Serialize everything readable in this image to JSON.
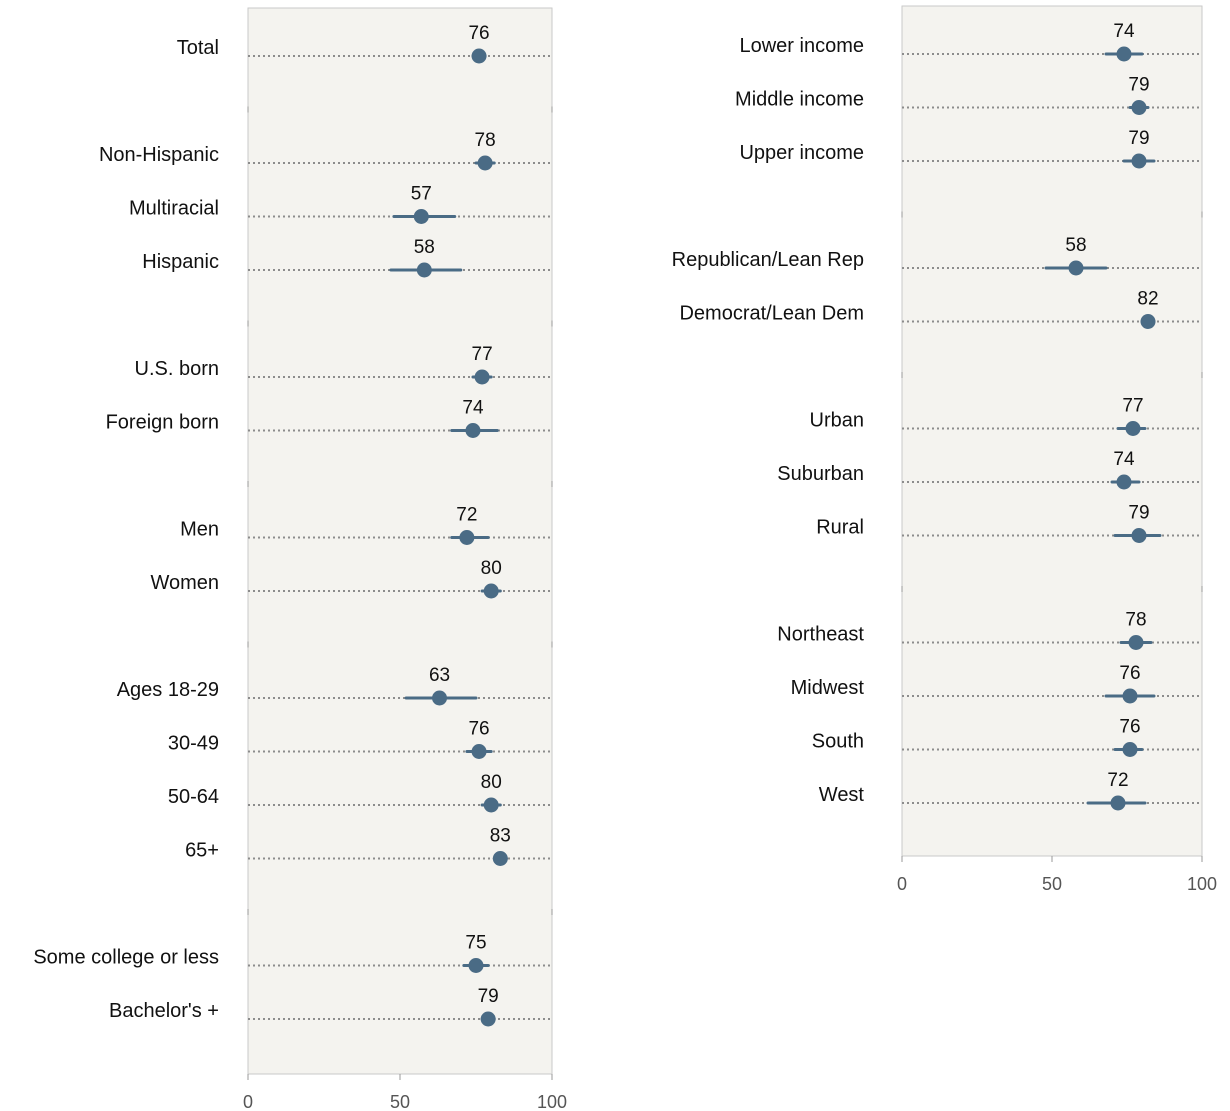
{
  "colors": {
    "panel_bg": "#f4f3ef",
    "panel_border": "#c9c9c9",
    "dot": "#4a6b85",
    "ci_line": "#4a6b85",
    "dotted_line": "#8c8c8c"
  },
  "chart_data": [
    {
      "type": "scatter",
      "title": "",
      "xlabel": "",
      "ylabel": "",
      "xlim": [
        0,
        100
      ],
      "x_ticks": [
        "0",
        "50",
        "100"
      ],
      "grid": false,
      "groups": [
        {
          "rows": [
            {
              "label": "Total",
              "value": 76,
              "ci": [
                74,
                78
              ]
            }
          ]
        },
        {
          "rows": [
            {
              "label": "Non-Hispanic",
              "value": 78,
              "ci": [
                75,
                81
              ]
            },
            {
              "label": "Multiracial",
              "value": 57,
              "ci": [
                48,
                68
              ]
            },
            {
              "label": "Hispanic",
              "value": 58,
              "ci": [
                47,
                70
              ]
            }
          ]
        },
        {
          "rows": [
            {
              "label": "U.S. born",
              "value": 77,
              "ci": [
                74,
                80
              ]
            },
            {
              "label": "Foreign born",
              "value": 74,
              "ci": [
                67,
                82
              ]
            }
          ]
        },
        {
          "rows": [
            {
              "label": "Men",
              "value": 72,
              "ci": [
                67,
                79
              ]
            },
            {
              "label": "Women",
              "value": 80,
              "ci": [
                77,
                83
              ]
            }
          ]
        },
        {
          "rows": [
            {
              "label": "Ages 18-29",
              "value": 63,
              "ci": [
                52,
                75
              ]
            },
            {
              "label": "30-49",
              "value": 76,
              "ci": [
                72,
                80
              ]
            },
            {
              "label": "50-64",
              "value": 80,
              "ci": [
                77,
                83
              ]
            },
            {
              "label": "65+",
              "value": 83,
              "ci": [
                81,
                85
              ]
            }
          ]
        },
        {
          "rows": [
            {
              "label": "Some college or less",
              "value": 75,
              "ci": [
                71,
                79
              ]
            },
            {
              "label": "Bachelor's +",
              "value": 79,
              "ci": [
                77,
                81
              ]
            }
          ]
        }
      ]
    },
    {
      "type": "scatter",
      "title": "",
      "xlabel": "",
      "ylabel": "",
      "xlim": [
        0,
        100
      ],
      "x_ticks": [
        "0",
        "50",
        "100"
      ],
      "grid": false,
      "groups": [
        {
          "rows": [
            {
              "label": "Lower income",
              "value": 74,
              "ci": [
                68,
                80
              ]
            },
            {
              "label": "Middle income",
              "value": 79,
              "ci": [
                76,
                82
              ]
            },
            {
              "label": "Upper income",
              "value": 79,
              "ci": [
                74,
                84
              ]
            }
          ]
        },
        {
          "rows": [
            {
              "label": "Republican/Lean Rep",
              "value": 58,
              "ci": [
                48,
                68
              ]
            },
            {
              "label": "Democrat/Lean Dem",
              "value": 82,
              "ci": [
                80,
                84
              ]
            }
          ]
        },
        {
          "rows": [
            {
              "label": "Urban",
              "value": 77,
              "ci": [
                72,
                81
              ]
            },
            {
              "label": "Suburban",
              "value": 74,
              "ci": [
                70,
                79
              ]
            },
            {
              "label": "Rural",
              "value": 79,
              "ci": [
                71,
                86
              ]
            }
          ]
        },
        {
          "rows": [
            {
              "label": "Northeast",
              "value": 78,
              "ci": [
                73,
                83
              ]
            },
            {
              "label": "Midwest",
              "value": 76,
              "ci": [
                68,
                84
              ]
            },
            {
              "label": "South",
              "value": 76,
              "ci": [
                71,
                80
              ]
            },
            {
              "label": "West",
              "value": 72,
              "ci": [
                62,
                81
              ]
            }
          ]
        }
      ]
    }
  ]
}
